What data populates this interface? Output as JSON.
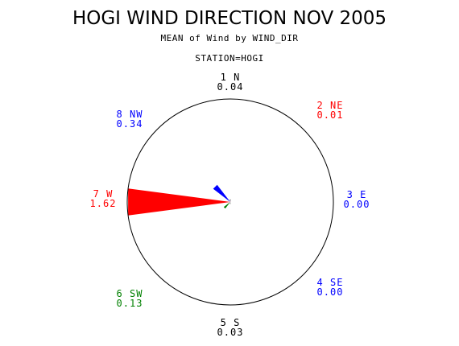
{
  "header": {
    "title": "HOGI WIND DIRECTION NOV 2005",
    "subtitle": "MEAN of Wind by WIND_DIR",
    "station": "STATION=HOGI"
  },
  "colors": {
    "red": "#ff0000",
    "blue": "#0000ff",
    "green": "#008000",
    "black": "#000000"
  },
  "chart_data": {
    "type": "radar",
    "title": "HOGI WIND DIRECTION NOV 2005",
    "subtitle": "MEAN of Wind by WIND_DIR",
    "station": "STATION=HOGI",
    "directions": [
      {
        "label": "1 N",
        "value": 0.04,
        "value_text": "0.04",
        "color": "#000000"
      },
      {
        "label": "2 NE",
        "value": 0.01,
        "value_text": "0.01",
        "color": "#ff0000"
      },
      {
        "label": "3 E",
        "value": 0.0,
        "value_text": "0.00",
        "color": "#0000ff"
      },
      {
        "label": "4 SE",
        "value": 0.0,
        "value_text": "0.00",
        "color": "#0000ff"
      },
      {
        "label": "5 S",
        "value": 0.03,
        "value_text": "0.03",
        "color": "#000000"
      },
      {
        "label": "6 SW",
        "value": 0.13,
        "value_text": "0.13",
        "color": "#008000"
      },
      {
        "label": "7 W",
        "value": 1.62,
        "value_text": "1.62",
        "color": "#ff0000"
      },
      {
        "label": "8 NW",
        "value": 0.34,
        "value_text": "0.34",
        "color": "#0000ff"
      }
    ],
    "rmax": 1.62
  }
}
